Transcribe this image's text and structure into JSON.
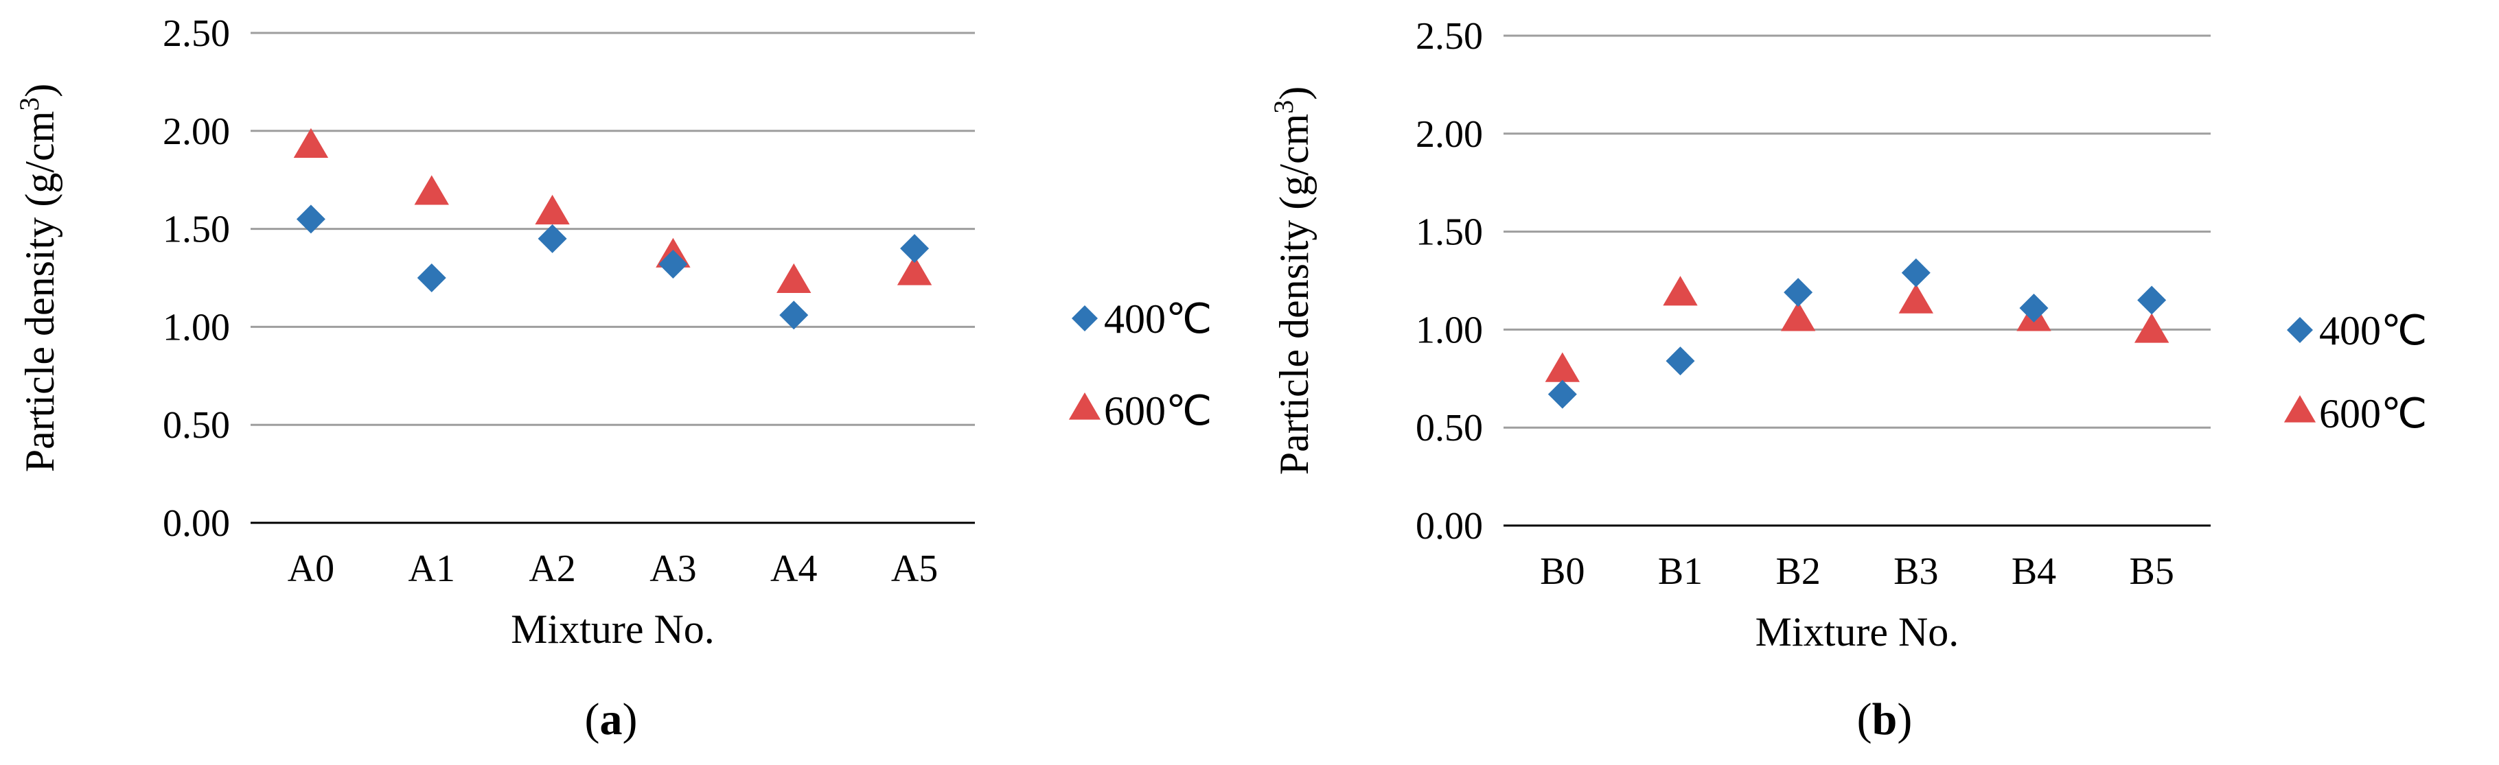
{
  "colors": {
    "series_400": "#2e75b6",
    "series_600": "#e04a4a",
    "gridline": "#9e9e9e",
    "axis": "#000000"
  },
  "chart_data": [
    {
      "type": "scatter",
      "caption_letter": "a",
      "xlabel": "Mixture No.",
      "ylabel": "Particle density (g/cm",
      "ylabel_sup": "3",
      "ylabel_close": ")",
      "categories": [
        "A0",
        "A1",
        "A2",
        "A3",
        "A4",
        "A5"
      ],
      "ylim": [
        0,
        2.5
      ],
      "yticks": [
        "0.00",
        "0.50",
        "1.00",
        "1.50",
        "2.00",
        "2.50"
      ],
      "grid": true,
      "legend_position": "right",
      "series": [
        {
          "name": "400℃",
          "marker": "diamond",
          "values": [
            1.55,
            1.25,
            1.45,
            1.32,
            1.06,
            1.4
          ]
        },
        {
          "name": "600℃",
          "marker": "triangle",
          "values": [
            1.93,
            1.69,
            1.59,
            1.37,
            1.24,
            1.28
          ]
        }
      ]
    },
    {
      "type": "scatter",
      "caption_letter": "b",
      "xlabel": "Mixture No.",
      "ylabel": "Particle density (g/cm",
      "ylabel_sup": "3",
      "ylabel_close": ")",
      "categories": [
        "B0",
        "B1",
        "B2",
        "B3",
        "B4",
        "B5"
      ],
      "ylim": [
        0,
        2.5
      ],
      "yticks": [
        "0.00",
        "0.50",
        "1.00",
        "1.50",
        "2.00",
        "2.50"
      ],
      "grid": true,
      "legend_position": "right",
      "series": [
        {
          "name": "400℃",
          "marker": "diamond",
          "values": [
            0.67,
            0.84,
            1.19,
            1.29,
            1.11,
            1.15
          ]
        },
        {
          "name": "600℃",
          "marker": "triangle",
          "values": [
            0.8,
            1.19,
            1.06,
            1.15,
            1.06,
            1.0
          ]
        }
      ]
    }
  ]
}
